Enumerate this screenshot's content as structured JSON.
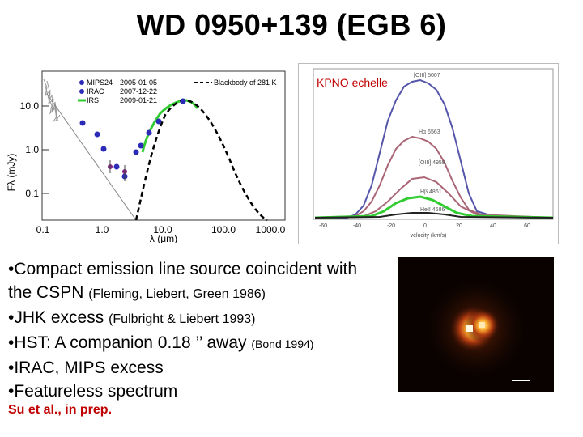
{
  "title": "WD 0950+139 (EGB 6)",
  "sed_plot": {
    "ylabel": "Fλ (mJy)",
    "xlabel": "λ (μm)",
    "y_ticks": [
      "10.0",
      "1.0",
      "0.1"
    ],
    "x_ticks": [
      "0.1",
      "1.0",
      "10.0",
      "100.0",
      "1000.0"
    ],
    "legend": [
      {
        "label": "MIPS24",
        "date": "2005-01-05",
        "color": "#2b2bb8"
      },
      {
        "label": "IRAC",
        "date": "2007-12-22",
        "color": "#2b2bb8"
      },
      {
        "label": "IRS",
        "date": "2009-01-21",
        "color": "#33cc33"
      }
    ],
    "blackbody_label": "Blackbody of 281 K"
  },
  "echelle_plot": {
    "label": "KPNO echelle",
    "line_labels": [
      "[OIII] 5007",
      "Hα 6563",
      "[OIII] 4959",
      "Hβ 4861",
      "HeII 4686"
    ],
    "line_colors": [
      "#5555aa",
      "#aa6677",
      "#aa6677",
      "#33cc33",
      "#222222"
    ],
    "x_ticks": [
      "-60",
      "-40",
      "-20",
      "0",
      "20",
      "40",
      "60"
    ],
    "xlabel": "velocity (km/s)"
  },
  "bullets": [
    {
      "main": "•Compact emission line source coincident with",
      "ref": ""
    },
    {
      "main": "the CSPN",
      "ref": "(Fleming, Liebert, Green 1986)"
    },
    {
      "main": "•JHK excess",
      "ref": "(Fulbright & Liebert 1993)"
    },
    {
      "main": "•HST: A companion 0.18 ’’ away",
      "ref": "(Bond 1994)"
    },
    {
      "main": "•IRAC, MIPS excess",
      "ref": ""
    },
    {
      "main": "•Featureless spectrum",
      "ref": ""
    }
  ],
  "credit": "Su et al., in prep."
}
